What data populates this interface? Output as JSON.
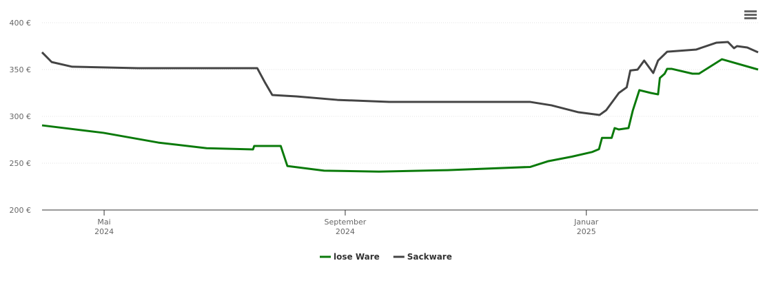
{
  "chart_data": {
    "type": "line",
    "xlim": [
      3.97,
      15.85
    ],
    "xticks": [
      {
        "value": 5,
        "label": "Mai\n2024"
      },
      {
        "value": 9,
        "label": "September\n2024"
      },
      {
        "value": 13,
        "label": "Januar\n2025"
      }
    ],
    "ylim": [
      200,
      400
    ],
    "yticks": [
      {
        "value": 200,
        "label": "200 €"
      },
      {
        "value": 250,
        "label": "250 €"
      },
      {
        "value": 300,
        "label": "300 €"
      },
      {
        "value": 350,
        "label": "350 €"
      },
      {
        "value": 400,
        "label": "400 €"
      }
    ],
    "grid": true,
    "series": [
      {
        "name": "lose Ware",
        "color": "#0a7a0a",
        "x": [
          3.97,
          4.99,
          5.9,
          6.7,
          7.47,
          7.49,
          7.93,
          8.04,
          8.65,
          9.56,
          10.7,
          12.07,
          12.36,
          12.76,
          13.1,
          13.21,
          13.26,
          13.42,
          13.47,
          13.54,
          13.7,
          13.77,
          13.88,
          14.07,
          14.19,
          14.22,
          14.3,
          14.34,
          14.42,
          14.76,
          14.87,
          15.25,
          15.85
        ],
        "values": [
          290.4,
          282.4,
          272,
          266,
          264.7,
          268.4,
          268.4,
          247,
          242,
          241,
          242.6,
          246,
          252,
          257,
          262,
          265,
          277,
          277,
          287.5,
          286,
          287.5,
          306,
          328,
          325,
          323.5,
          341,
          345.6,
          350.7,
          350.7,
          345.6,
          345.6,
          361,
          350
        ]
      },
      {
        "name": "Sackware",
        "color": "#444444",
        "x": [
          3.97,
          4.13,
          4.47,
          5.56,
          7.54,
          7.67,
          7.79,
          8.19,
          8.87,
          9.73,
          12.07,
          12.42,
          12.87,
          13.22,
          13.33,
          13.54,
          13.67,
          13.73,
          13.85,
          13.96,
          14.11,
          14.19,
          14.34,
          14.82,
          15.16,
          15.35,
          15.45,
          15.5,
          15.67,
          15.85
        ],
        "values": [
          368.4,
          358,
          353,
          351.5,
          351.5,
          336,
          322.8,
          321.3,
          317.6,
          315.4,
          315.4,
          311.8,
          304.4,
          301.5,
          306.6,
          325,
          331,
          349,
          349.9,
          359.6,
          346.3,
          359.6,
          369,
          371.3,
          378.7,
          379.4,
          372.8,
          375,
          373.5,
          368.4
        ]
      }
    ]
  }
}
